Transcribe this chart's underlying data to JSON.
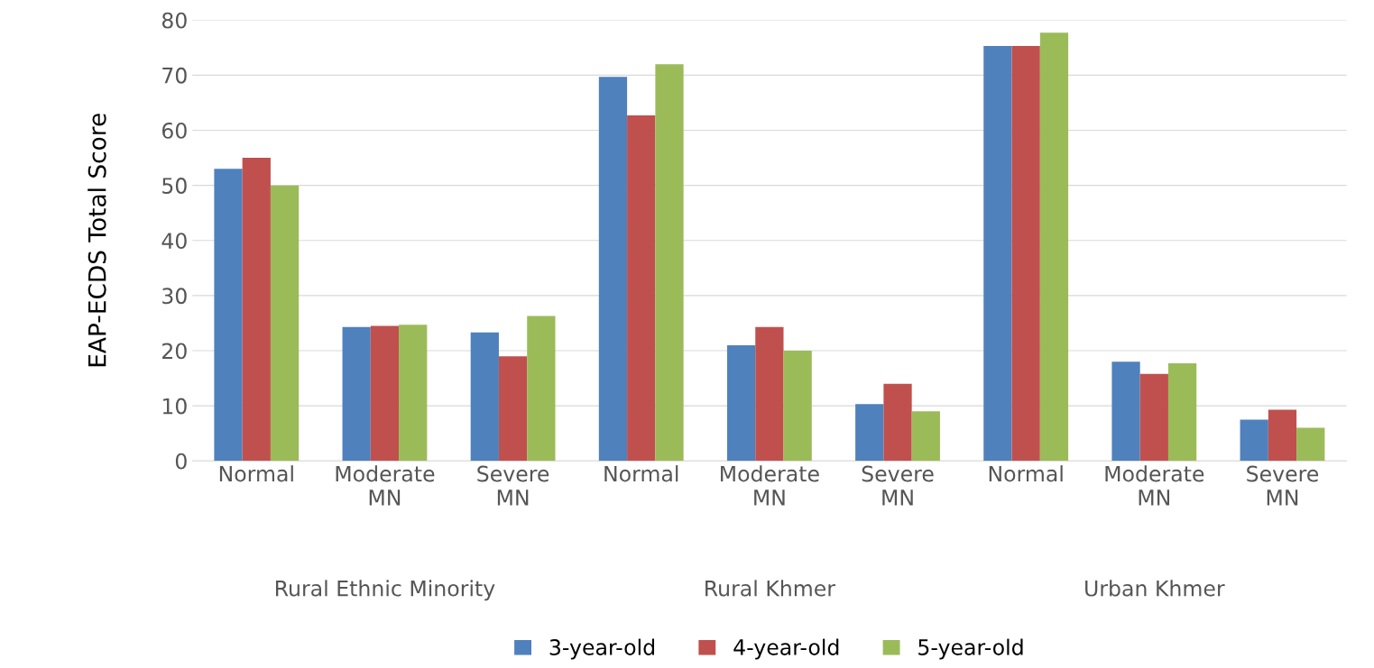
{
  "chart_data": {
    "type": "bar",
    "ylabel": "EAP-ECDS Total Score",
    "categories": [
      "Normal",
      "Moderate\nMN",
      "Severe\nMN",
      "Normal",
      "Moderate\nMN",
      "Severe\nMN",
      "Normal",
      "Moderate\nMN",
      "Severe\nMN"
    ],
    "series": [
      {
        "name": "3-year-old",
        "color": "#4f81bd",
        "values": [
          53,
          24.3,
          23.3,
          69.7,
          21,
          10.3,
          75.3,
          18,
          7.5
        ]
      },
      {
        "name": "4-year-old",
        "color": "#c0504d",
        "values": [
          55,
          24.5,
          19,
          62.7,
          24.3,
          14,
          75.3,
          15.8,
          9.3
        ]
      },
      {
        "name": "5-year-old",
        "color": "#9bbb59",
        "values": [
          50,
          24.7,
          26.3,
          72,
          20,
          9,
          77.7,
          17.7,
          6
        ]
      }
    ],
    "annotations": [
      "Rural Ethnic Minority",
      "Rural Khmer",
      "Urban Khmer"
    ],
    "ylim": [
      0,
      80
    ],
    "yticks": [
      0,
      10,
      20,
      30,
      40,
      50,
      60,
      70,
      80
    ],
    "grid": "y",
    "legend": "bottom"
  }
}
